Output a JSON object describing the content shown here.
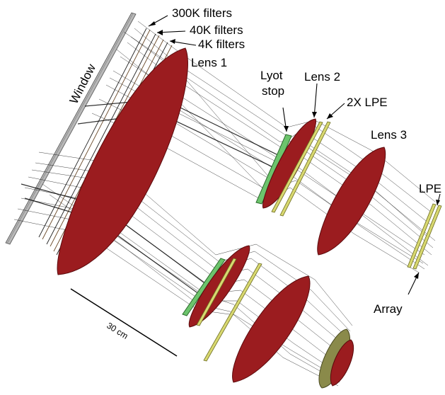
{
  "labels": {
    "window": "Window",
    "filters_300k": "300K filters",
    "filters_40k": "40K filters",
    "filters_4k": "4K filters",
    "lens1": "Lens 1",
    "lyot_line1": "Lyot",
    "lyot_line2": "stop",
    "lens2": "Lens 2",
    "lpe2x": "2X LPE",
    "lens3": "Lens 3",
    "lpe": "LPE",
    "array": "Array",
    "scale": "30 cm"
  },
  "colors": {
    "lens": "#9b1c1f",
    "lyot_stop": "#6cc46c",
    "lpe": "#d8d870",
    "array": "#8a8a4a",
    "window": "#a0a0a0"
  }
}
